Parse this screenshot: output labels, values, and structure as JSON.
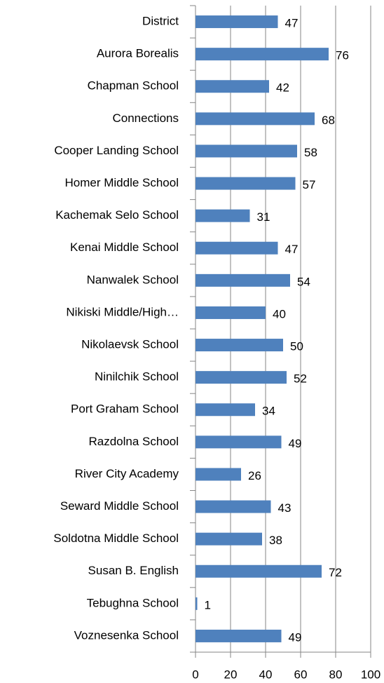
{
  "chart_data": {
    "type": "bar",
    "orientation": "horizontal",
    "categories": [
      "District",
      "Aurora Borealis",
      "Chapman School",
      "Connections",
      "Cooper Landing School",
      "Homer Middle School",
      "Kachemak Selo School",
      "Kenai Middle School",
      "Nanwalek School",
      "Nikiski Middle/High…",
      "Nikolaevsk School",
      "Ninilchik School",
      "Port Graham School",
      "Razdolna School",
      "River City Academy",
      "Seward Middle School",
      "Soldotna Middle School",
      "Susan B. English",
      "Tebughna School",
      "Voznesenka School"
    ],
    "values": [
      47,
      76,
      42,
      68,
      58,
      57,
      31,
      47,
      54,
      40,
      50,
      52,
      34,
      49,
      26,
      43,
      38,
      72,
      1,
      49
    ],
    "color": "#4f81bd",
    "xlim": [
      0,
      100
    ],
    "xticks": [
      0,
      20,
      40,
      60,
      80,
      100
    ],
    "grid": true
  }
}
